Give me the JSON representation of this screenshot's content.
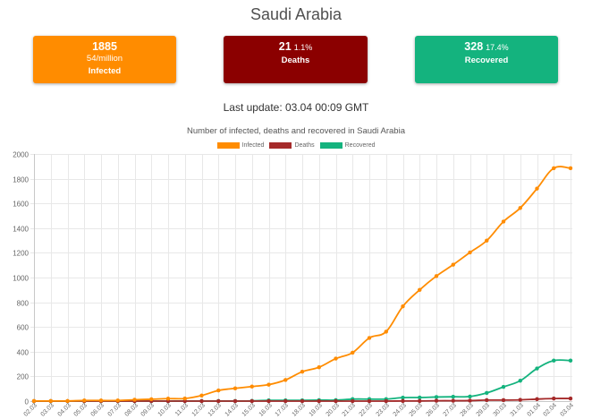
{
  "page": {
    "title": "Saudi Arabia",
    "last_update": "Last update: 03.04 00:09 GMT"
  },
  "cards": {
    "infected": {
      "value": "1885",
      "per_million": "54/million",
      "label": "Infected",
      "color": "#FF8C00"
    },
    "deaths": {
      "value": "21",
      "percent": "1.1%",
      "label": "Deaths",
      "color": "#8B0000"
    },
    "recovered": {
      "value": "328",
      "percent": "17.4%",
      "label": "Recovered",
      "color": "#14B37E"
    }
  },
  "chart_data": {
    "type": "line",
    "title": "Number of infected, deaths and recovered in Saudi Arabia",
    "x": [
      "02.03",
      "03.03",
      "04.03",
      "05.03",
      "06.03",
      "07.03",
      "08.03",
      "09.03",
      "10.03",
      "11.03",
      "12.03",
      "13.03",
      "14.03",
      "15.03",
      "16.03",
      "17.03",
      "18.03",
      "19.03",
      "20.03",
      "21.03",
      "22.03",
      "23.03",
      "24.03",
      "25.03",
      "26.03",
      "27.03",
      "28.03",
      "29.03",
      "30.03",
      "31.03",
      "01.04",
      "02.04",
      "03.04"
    ],
    "series": [
      {
        "name": "Infected",
        "color": "#FF8C00",
        "values": [
          1,
          1,
          1,
          5,
          5,
          5,
          11,
          15,
          20,
          21,
          45,
          86,
          103,
          118,
          133,
          171,
          238,
          274,
          344,
          392,
          511,
          562,
          767,
          900,
          1012,
          1104,
          1203,
          1299,
          1453,
          1563,
          1720,
          1885,
          1885
        ]
      },
      {
        "name": "Deaths",
        "color": "#A52A2A",
        "values": [
          0,
          0,
          0,
          0,
          0,
          0,
          0,
          0,
          0,
          0,
          0,
          0,
          0,
          0,
          0,
          0,
          0,
          0,
          0,
          0,
          0,
          0,
          1,
          1,
          3,
          3,
          4,
          8,
          8,
          10,
          16,
          21,
          21
        ]
      },
      {
        "name": "Recovered",
        "color": "#14B37E",
        "values": [
          0,
          0,
          0,
          0,
          0,
          0,
          0,
          0,
          0,
          1,
          1,
          1,
          1,
          2,
          6,
          6,
          6,
          8,
          8,
          16,
          16,
          16,
          28,
          29,
          33,
          35,
          37,
          66,
          115,
          165,
          264,
          328,
          328
        ]
      }
    ],
    "ylim": [
      0,
      2000
    ],
    "yticks": [
      0,
      200,
      400,
      600,
      800,
      1000,
      1200,
      1400,
      1600,
      1800,
      2000
    ],
    "grid": true,
    "legend": "top"
  }
}
